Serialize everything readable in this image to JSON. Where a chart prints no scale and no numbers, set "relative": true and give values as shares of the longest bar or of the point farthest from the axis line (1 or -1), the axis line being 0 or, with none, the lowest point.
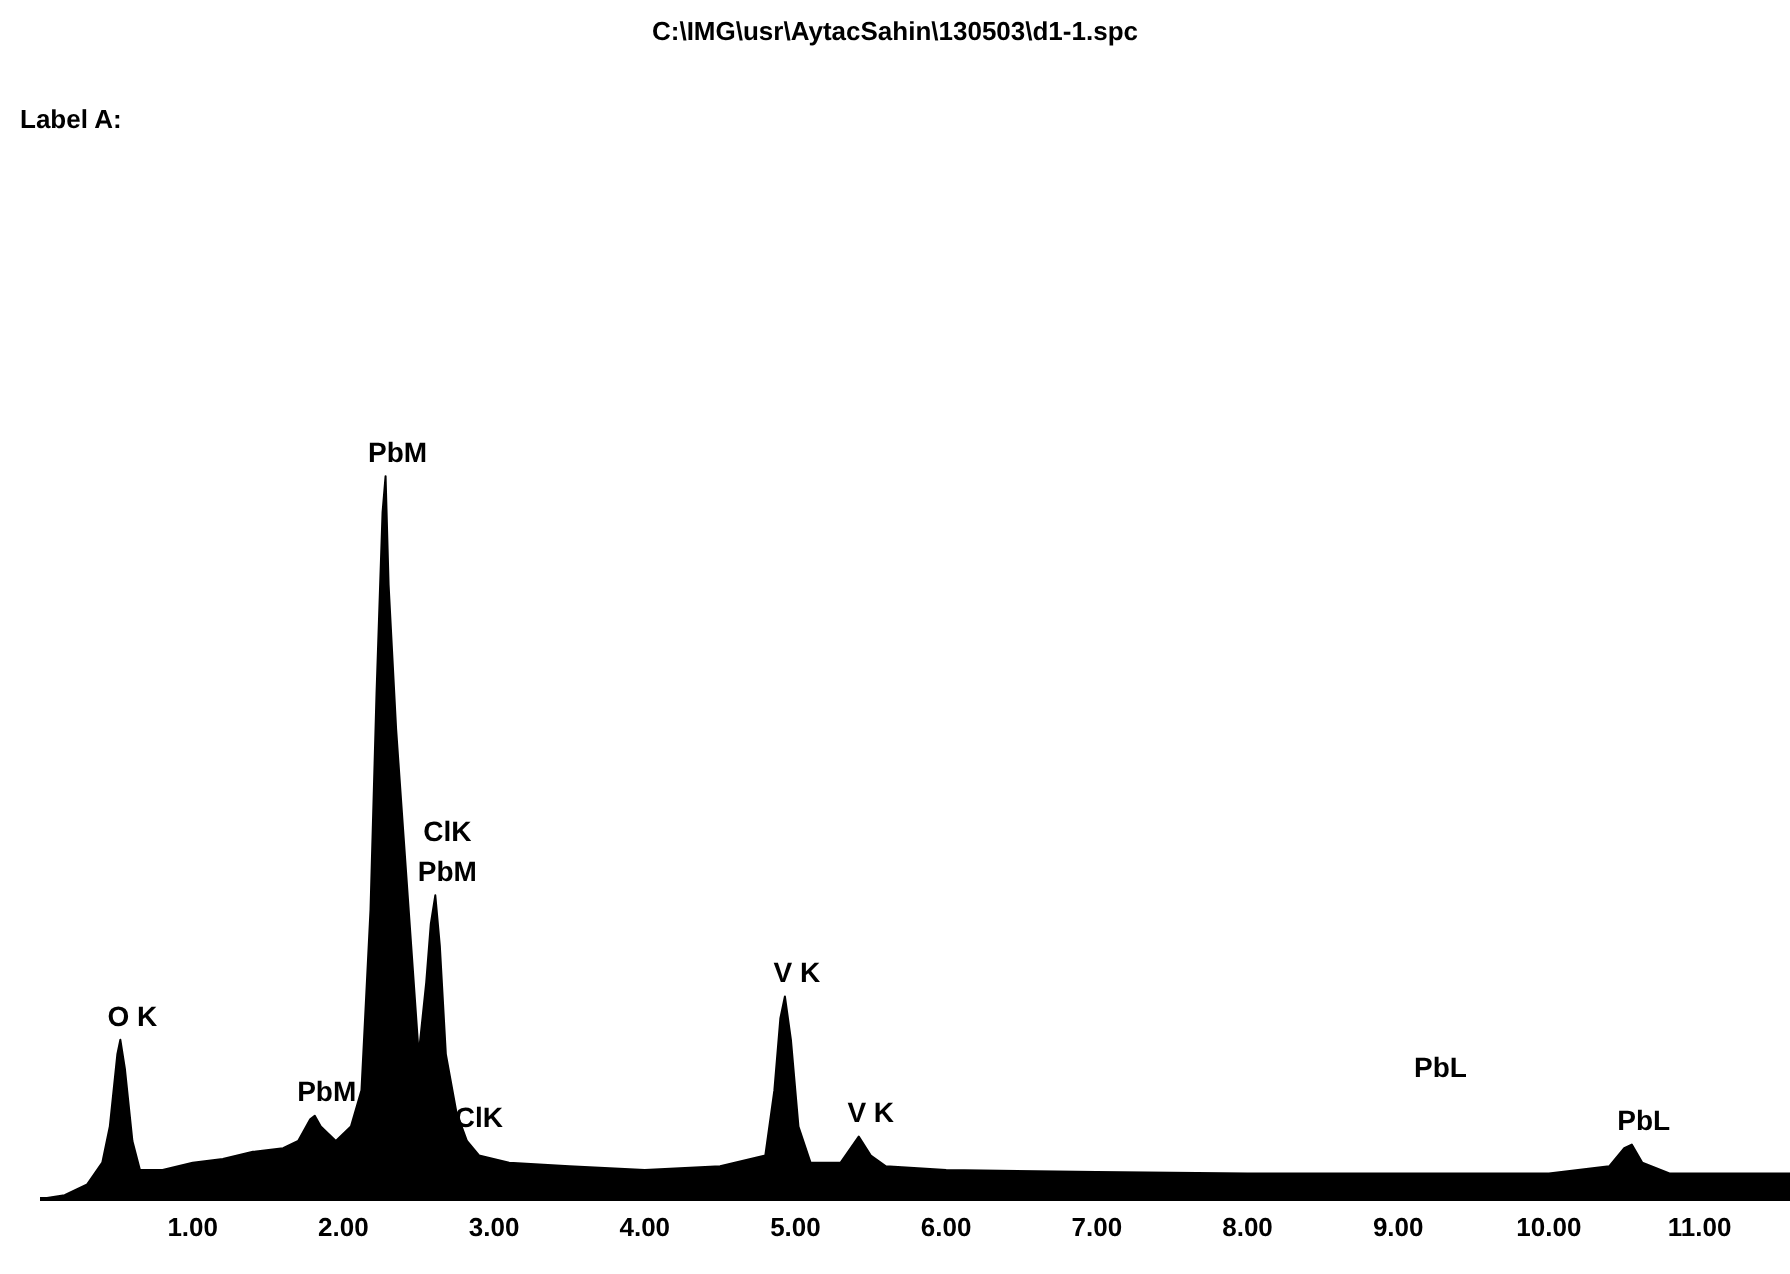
{
  "chart_data": {
    "type": "area",
    "title": "C:\\IMG\\usr\\AytacSahin\\130503\\d1-1.spc",
    "subtitle": "Label A:",
    "relative": true,
    "grid": false,
    "legend": false,
    "xlim": [
      0,
      11.6
    ],
    "xticks": [
      {
        "value": 1,
        "label": "1.00"
      },
      {
        "value": 2,
        "label": "2.00"
      },
      {
        "value": 3,
        "label": "3.00"
      },
      {
        "value": 4,
        "label": "4.00"
      },
      {
        "value": 5,
        "label": "5.00"
      },
      {
        "value": 6,
        "label": "6.00"
      },
      {
        "value": 7,
        "label": "7.00"
      },
      {
        "value": 8,
        "label": "8.00"
      },
      {
        "value": 9,
        "label": "9.00"
      },
      {
        "value": 10,
        "label": "10.00"
      },
      {
        "value": 11,
        "label": "11.00"
      }
    ],
    "x": [
      0,
      0.15,
      0.3,
      0.4,
      0.45,
      0.5,
      0.52,
      0.55,
      0.6,
      0.65,
      0.8,
      1.0,
      1.2,
      1.4,
      1.6,
      1.7,
      1.78,
      1.81,
      1.85,
      1.95,
      2.05,
      2.12,
      2.18,
      2.22,
      2.26,
      2.28,
      2.3,
      2.35,
      2.4,
      2.45,
      2.5,
      2.55,
      2.58,
      2.61,
      2.64,
      2.68,
      2.75,
      2.82,
      2.9,
      3.1,
      3.5,
      4.0,
      4.5,
      4.8,
      4.86,
      4.9,
      4.93,
      4.97,
      5.02,
      5.1,
      5.3,
      5.42,
      5.5,
      5.6,
      6.0,
      7.0,
      8.0,
      9.0,
      10.0,
      10.4,
      10.5,
      10.55,
      10.62,
      10.8,
      11.6
    ],
    "series": [
      {
        "color": "#000000",
        "values": [
          0,
          0.005,
          0.02,
          0.05,
          0.1,
          0.2,
          0.22,
          0.18,
          0.08,
          0.04,
          0.04,
          0.05,
          0.055,
          0.065,
          0.07,
          0.08,
          0.11,
          0.115,
          0.1,
          0.08,
          0.1,
          0.15,
          0.4,
          0.7,
          0.95,
          1.0,
          0.85,
          0.65,
          0.5,
          0.35,
          0.2,
          0.3,
          0.38,
          0.42,
          0.35,
          0.2,
          0.12,
          0.08,
          0.06,
          0.05,
          0.045,
          0.04,
          0.045,
          0.06,
          0.15,
          0.25,
          0.28,
          0.22,
          0.1,
          0.05,
          0.05,
          0.086,
          0.06,
          0.045,
          0.04,
          0.037,
          0.035,
          0.035,
          0.035,
          0.045,
          0.07,
          0.075,
          0.05,
          0.035,
          0.035
        ]
      }
    ],
    "annotations": [
      {
        "text": "O K",
        "x": 0.52,
        "y": 0.22
      },
      {
        "text": "PbM",
        "x": 1.81,
        "y": 0.115
      },
      {
        "text": "PbM",
        "x": 2.28,
        "y": 1.0
      },
      {
        "text": "PbM",
        "x": 2.61,
        "y": 0.42
      },
      {
        "text": "ClK",
        "x": 2.61,
        "y": 0.42
      },
      {
        "text": "ClK",
        "x": 2.82,
        "y": 0.08
      },
      {
        "text": "V K",
        "x": 4.93,
        "y": 0.28
      },
      {
        "text": "V K",
        "x": 5.42,
        "y": 0.086
      },
      "PbL",
      {
        "text": "PbL",
        "x": 10.55,
        "y": 0.075
      }
    ]
  }
}
